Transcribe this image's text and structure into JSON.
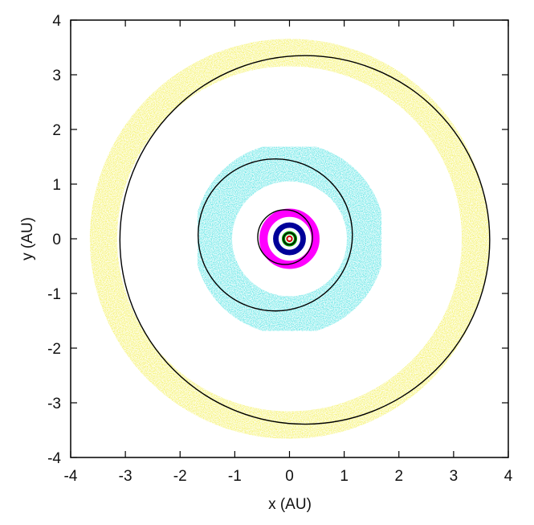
{
  "chart_data": {
    "type": "scatter",
    "title": "",
    "xlabel": "x (AU)",
    "ylabel": "y (AU)",
    "xlim": [
      -4,
      4
    ],
    "ylim": [
      -4,
      4
    ],
    "grid": false,
    "legend": null,
    "x_ticks": [
      "-4",
      "-3",
      "-2",
      "-1",
      "0",
      "1",
      "2",
      "3",
      "4"
    ],
    "y_ticks": [
      "-4",
      "-3",
      "-2",
      "-1",
      "0",
      "1",
      "2",
      "3",
      "4"
    ],
    "particle_rings": [
      {
        "name": "yellow-ring",
        "color": "#f2ee3c",
        "center": [
          0.0,
          0.0
        ],
        "inner_radius": 3.15,
        "outer_radius": 3.65
      },
      {
        "name": "cyan-ring",
        "color": "#33dede",
        "center": [
          0.0,
          0.0
        ],
        "inner_radius": 1.05,
        "outer_radius": 1.75
      },
      {
        "name": "magenta-ring",
        "color": "#ff00ff",
        "center": [
          0.0,
          0.0
        ],
        "inner_radius": 0.4,
        "outer_radius": 0.55
      },
      {
        "name": "blue-ring",
        "color": "#000099",
        "center": [
          0.0,
          0.0
        ],
        "inner_radius": 0.2,
        "outer_radius": 0.3
      },
      {
        "name": "green-ring",
        "color": "#009900",
        "center": [
          0.0,
          0.0
        ],
        "inner_radius": 0.08,
        "outer_radius": 0.14
      },
      {
        "name": "red-ring",
        "color": "#cc0000",
        "center": [
          0.0,
          0.0
        ],
        "inner_radius": 0.03,
        "outer_radius": 0.06
      }
    ],
    "orbits": [
      {
        "name": "outer-orbit",
        "color": "#000000",
        "center": [
          0.28,
          -0.02
        ],
        "rx": 3.38,
        "ry": 3.37
      },
      {
        "name": "middle-orbit",
        "color": "#000000",
        "center": [
          -0.26,
          0.07
        ],
        "rx": 1.41,
        "ry": 1.39
      },
      {
        "name": "inner-orbit",
        "color": "#000000",
        "center": [
          -0.08,
          0.03
        ],
        "rx": 0.5,
        "ry": 0.5
      },
      {
        "name": "innermost-orbit",
        "color": "#000000",
        "center": [
          0.0,
          0.0
        ],
        "rx": 0.11,
        "ry": 0.11
      }
    ]
  }
}
